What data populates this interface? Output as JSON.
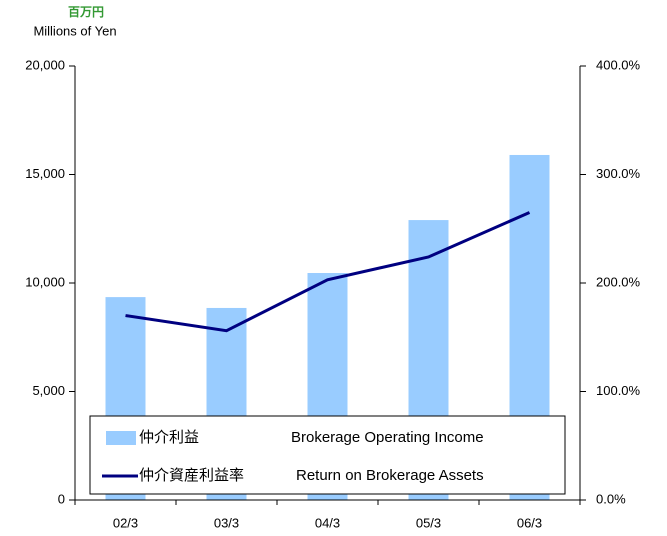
{
  "chart_data": {
    "type": "bar-line",
    "unit_label_ja": "百万円",
    "unit_label": "Millions of Yen",
    "categories": [
      "02/3",
      "03/3",
      "04/3",
      "05/3",
      "06/3"
    ],
    "series": [
      {
        "name": "仲介利益",
        "description": "Brokerage Operating Income",
        "type": "bar",
        "color": "#99ccff",
        "values": [
          9350,
          8850,
          10460,
          12900,
          15900
        ]
      },
      {
        "name": "仲介資産利益率",
        "description": "Return on Brokerage Assets",
        "type": "line",
        "axis": "y2",
        "color": "#000080",
        "values": [
          170,
          156,
          203,
          224,
          265
        ]
      }
    ],
    "ylim": [
      0,
      20000
    ],
    "yticks": [
      0,
      {
        "value": 5000,
        "label": "5,000"
      },
      {
        "value": 10000,
        "label": "10,000"
      },
      {
        "value": 15000,
        "label": "15,000"
      },
      {
        "value": 20000,
        "label": "20,000"
      }
    ],
    "y2lim": [
      0,
      400
    ],
    "y2ticks": [
      {
        "value": 0,
        "label": "0.0%"
      },
      {
        "value": 100,
        "label": "100.0%"
      },
      {
        "value": 200,
        "label": "200.0%"
      },
      {
        "value": 300,
        "label": "300.0%"
      },
      {
        "value": 400,
        "label": "400.0%"
      }
    ],
    "grid": false,
    "legend": "bottom"
  }
}
